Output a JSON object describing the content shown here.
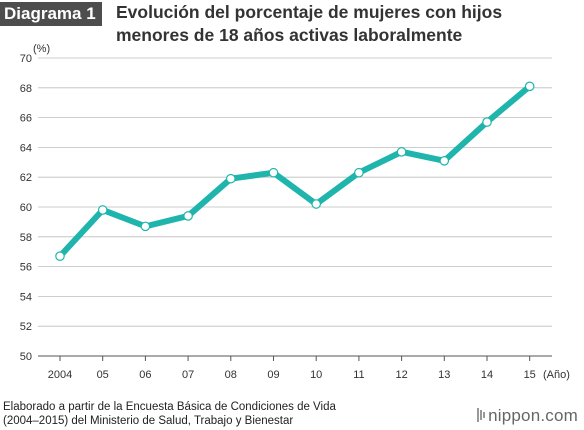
{
  "header": {
    "badge": "Diagrama 1",
    "title": "Evolución del porcentaje de mujeres con hijos menores de 18 años activas laboralmente"
  },
  "chart_data": {
    "type": "line",
    "title": "Evolución del porcentaje de mujeres con hijos menores de 18 años activas laboralmente",
    "ylabel": "(%)",
    "xlabel": "(Año)",
    "ylim": [
      50,
      70
    ],
    "yticks": [
      50,
      52,
      54,
      56,
      58,
      60,
      62,
      64,
      66,
      68,
      70
    ],
    "categories": [
      "2004",
      "05",
      "06",
      "07",
      "08",
      "09",
      "10",
      "11",
      "12",
      "13",
      "14",
      "15"
    ],
    "series": [
      {
        "values": [
          56.7,
          59.8,
          58.7,
          59.4,
          61.9,
          62.3,
          60.2,
          62.3,
          63.7,
          63.1,
          65.7,
          68.1
        ]
      }
    ],
    "grid": true,
    "line_color": "#1fb5ad"
  },
  "footer": {
    "source_line1": "Elaborado a partir de la Encuesta Básica de Condiciones de Vida",
    "source_line2": "(2004–2015) del Ministerio de Salud, Trabajo y Bienestar",
    "brand": "nippon.com"
  }
}
